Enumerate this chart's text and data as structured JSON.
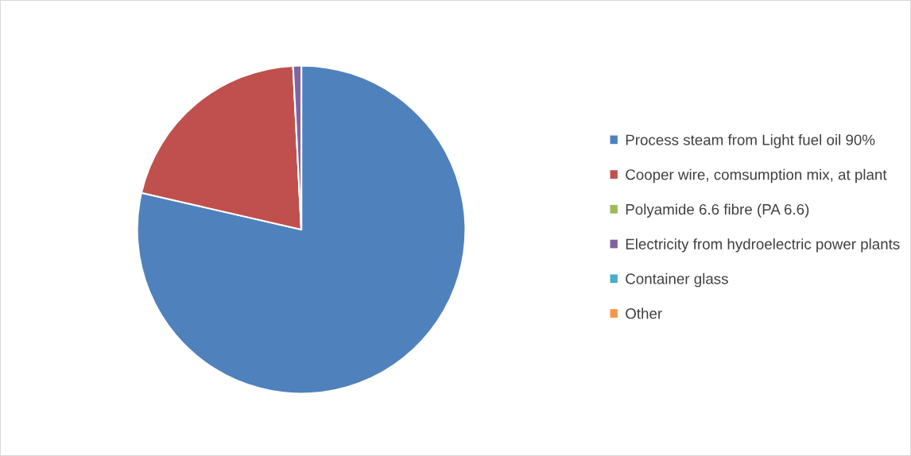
{
  "chart_data": {
    "type": "pie",
    "categories": [
      "Process steam from Light fuel oil 90%",
      "Cooper wire, comsumption mix, at plant",
      "Polyamide 6.6 fibre (PA 6.6)",
      "Electricity from hydroelectric power plants",
      "Container glass",
      "Other"
    ],
    "values": [
      78.6,
      20.6,
      null,
      0.8,
      null,
      null
    ],
    "colors": [
      "#4f81bd",
      "#c0504d",
      "#9bbb59",
      "#8064a2",
      "#4bacc6",
      "#f79646"
    ],
    "legend": "right"
  }
}
